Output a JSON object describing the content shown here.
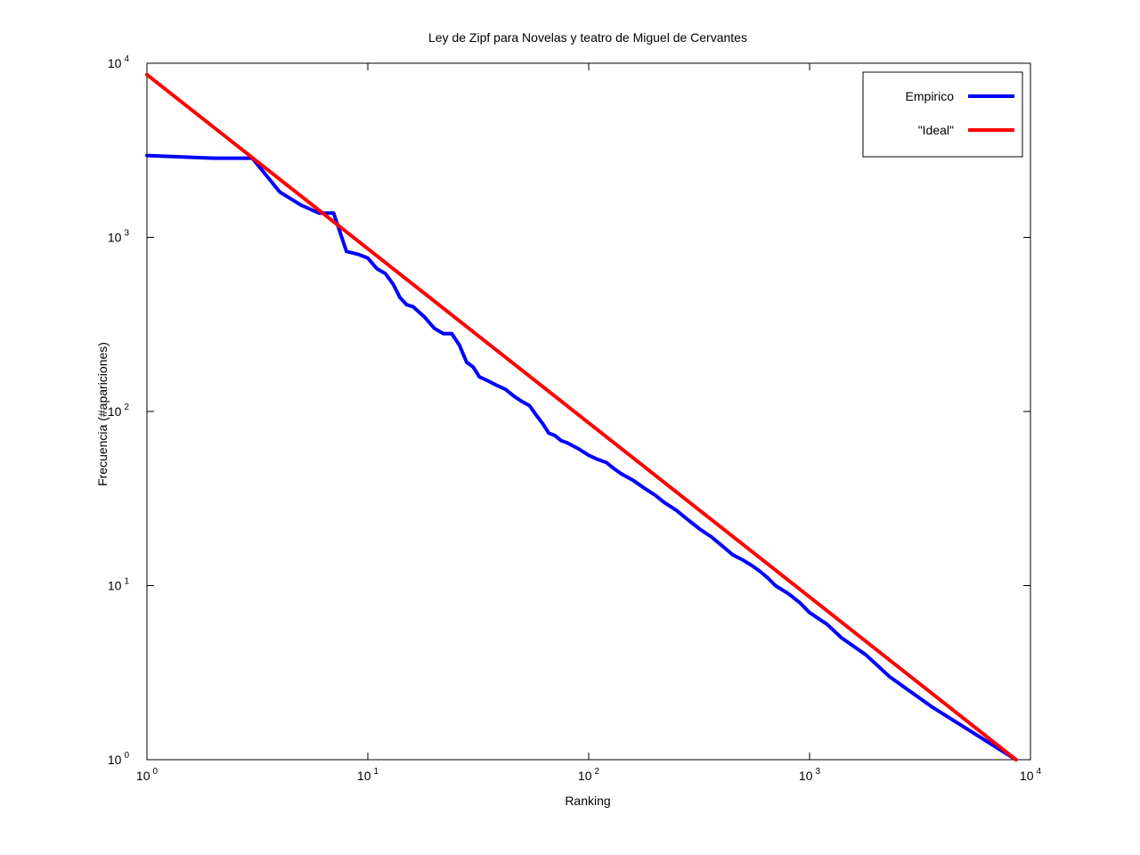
{
  "chart_data": {
    "type": "line",
    "title": "Ley de Zipf para Novelas y teatro de Miguel de Cervantes",
    "xlabel": "Ranking",
    "ylabel": "Frecuencia (#apariciones)",
    "xscale": "log",
    "yscale": "log",
    "xlim": [
      1,
      10000
    ],
    "ylim": [
      1,
      10000
    ],
    "grid": false,
    "legend_position": "top-right",
    "x_ticks": [
      {
        "value": 1,
        "base": "10",
        "exp": "0"
      },
      {
        "value": 10,
        "base": "10",
        "exp": "1"
      },
      {
        "value": 100,
        "base": "10",
        "exp": "2"
      },
      {
        "value": 1000,
        "base": "10",
        "exp": "3"
      },
      {
        "value": 10000,
        "base": "10",
        "exp": "4"
      }
    ],
    "y_ticks": [
      {
        "value": 1,
        "base": "10",
        "exp": "0"
      },
      {
        "value": 10,
        "base": "10",
        "exp": "1"
      },
      {
        "value": 100,
        "base": "10",
        "exp": "2"
      },
      {
        "value": 1000,
        "base": "10",
        "exp": "3"
      },
      {
        "value": 10000,
        "base": "10",
        "exp": "4"
      }
    ],
    "series": [
      {
        "name": "Empirico",
        "color": "#0000ff",
        "x": [
          1,
          2,
          3,
          4,
          5,
          6,
          7,
          8,
          9,
          10,
          11,
          12,
          13,
          14,
          15,
          16,
          18,
          20,
          22,
          24,
          26,
          28,
          30,
          32,
          35,
          38,
          42,
          46,
          50,
          54,
          58,
          62,
          66,
          70,
          75,
          80,
          90,
          100,
          110,
          120,
          130,
          140,
          160,
          180,
          200,
          220,
          250,
          280,
          320,
          360,
          400,
          450,
          500,
          550,
          600,
          650,
          700,
          800,
          900,
          1000,
          1200,
          1400,
          1800,
          2300,
          3600,
          8600
        ],
        "y": [
          2950,
          2850,
          2850,
          1820,
          1530,
          1380,
          1380,
          830,
          800,
          760,
          660,
          620,
          540,
          450,
          410,
          400,
          350,
          300,
          280,
          280,
          240,
          192,
          180,
          158,
          150,
          142,
          134,
          122,
          114,
          108,
          95,
          85,
          75,
          73,
          68,
          66,
          61,
          56,
          53,
          51,
          47,
          44,
          40,
          36,
          33,
          30,
          27,
          24,
          21,
          19,
          17,
          15,
          14,
          13,
          12,
          11,
          10,
          9,
          8,
          7,
          6,
          5,
          4,
          3,
          2,
          1
        ]
      },
      {
        "name": "\"Ideal\"",
        "color": "#ff0000",
        "x": [
          1,
          8600
        ],
        "y": [
          8600,
          1
        ]
      }
    ]
  }
}
